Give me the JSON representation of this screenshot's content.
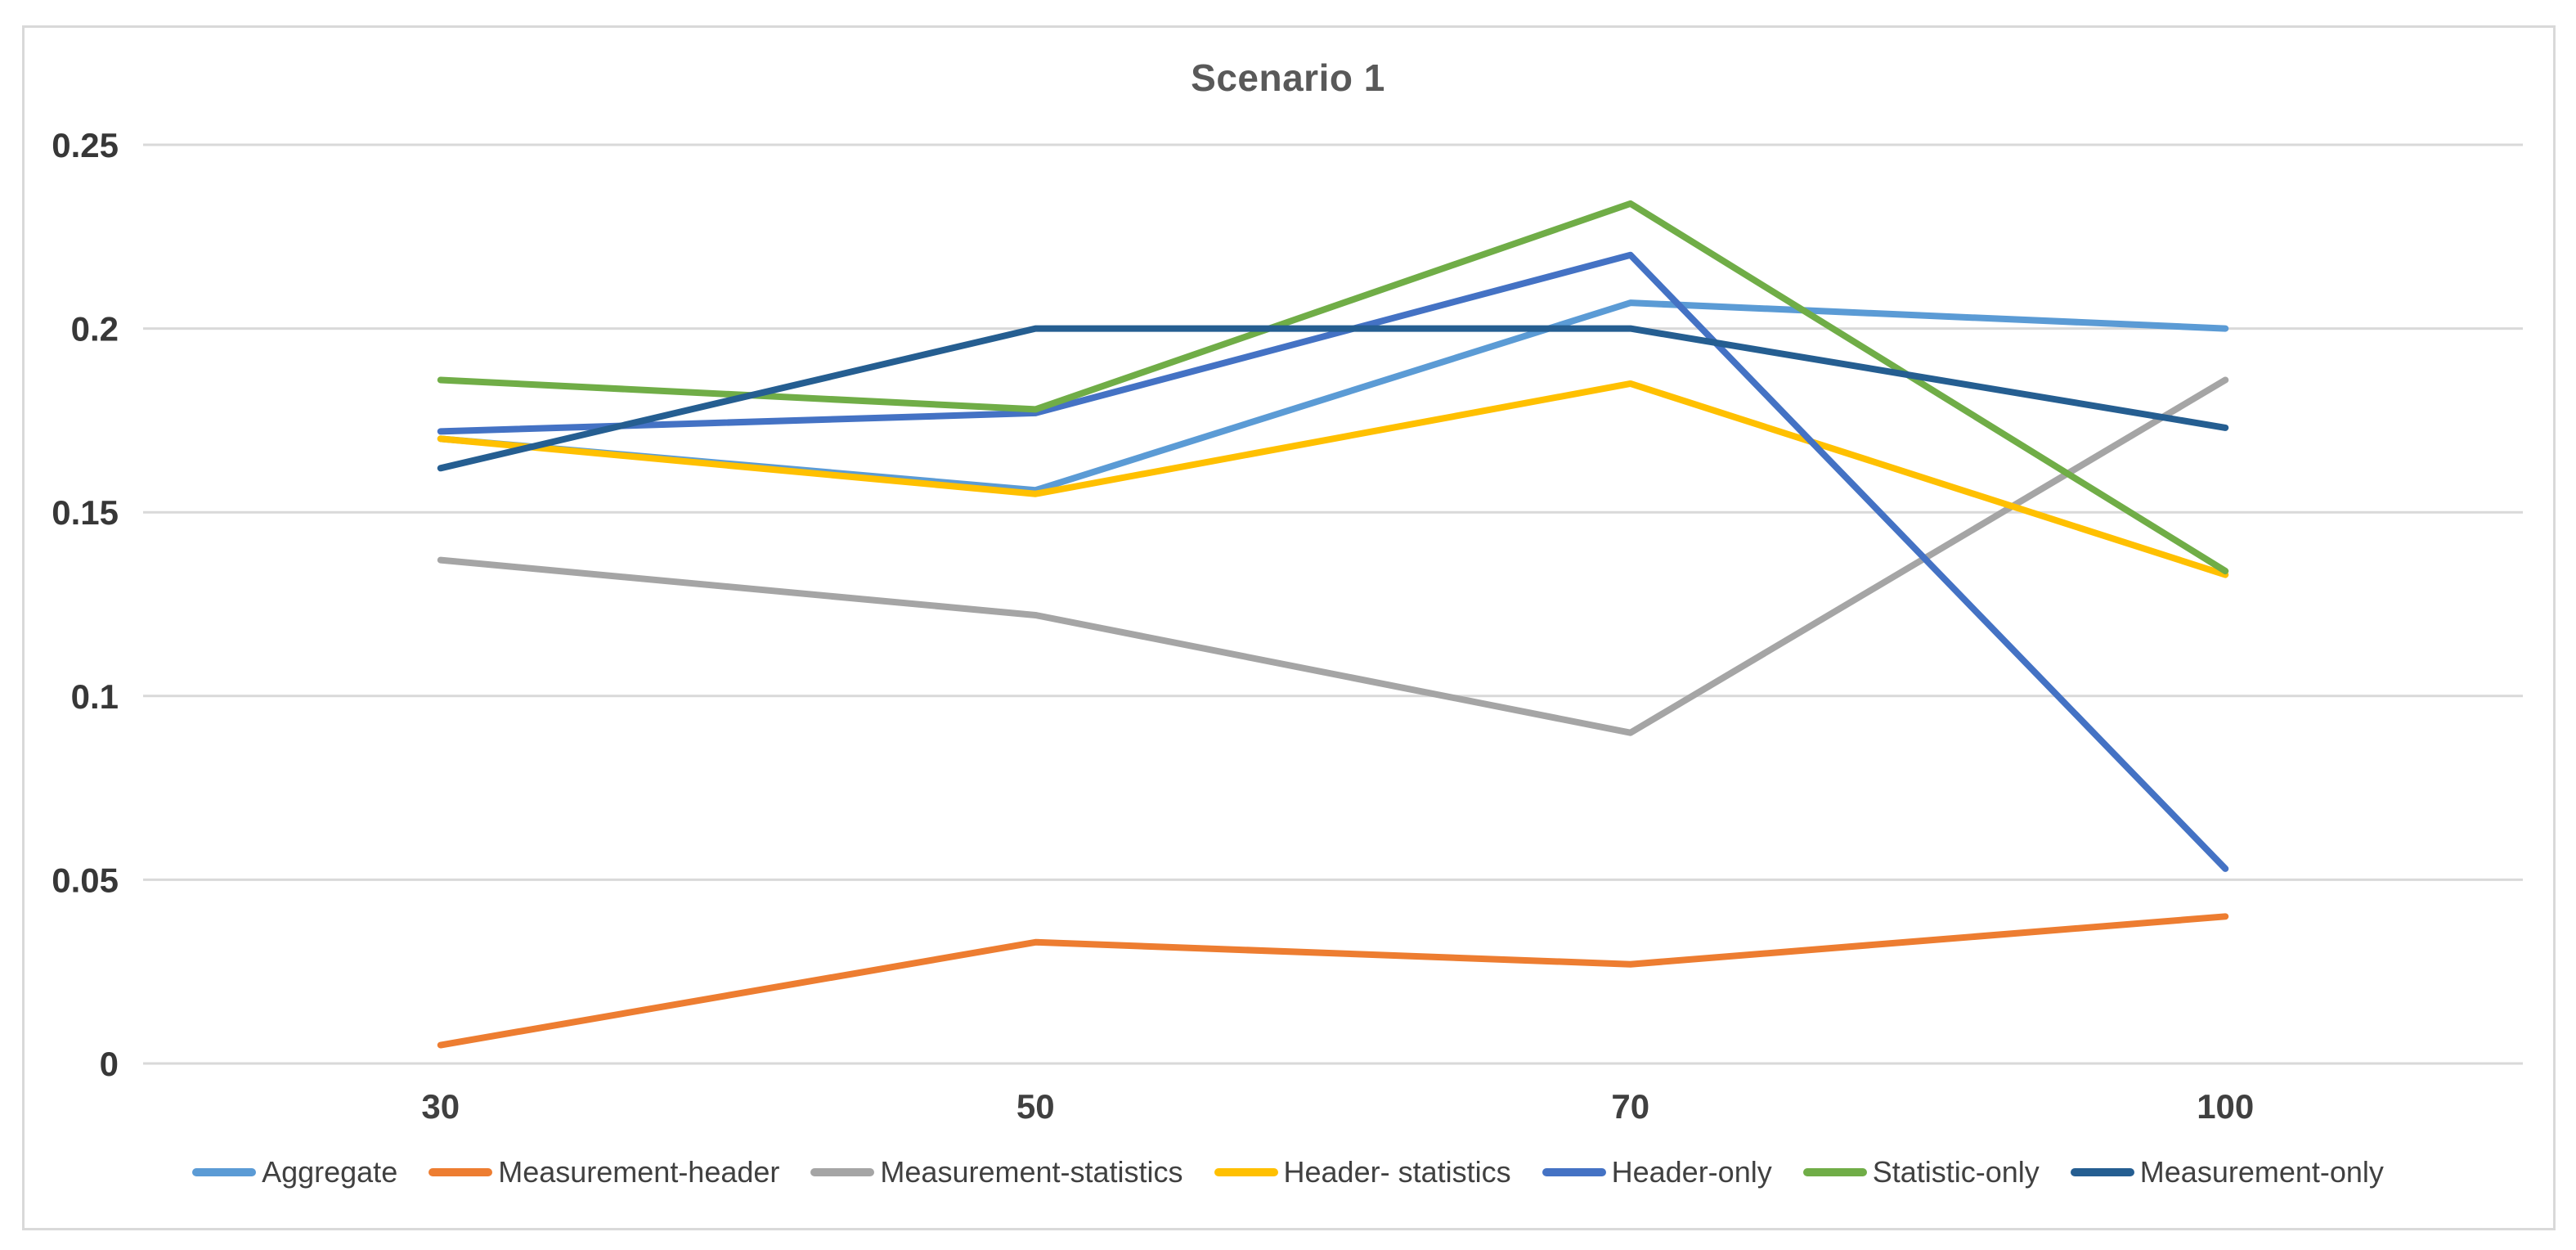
{
  "chart_data": {
    "type": "line",
    "title": "Scenario 1",
    "categories": [
      "30",
      "50",
      "70",
      "100"
    ],
    "y_ticks": [
      "0",
      "0.05",
      "0.1",
      "0.15",
      "0.2",
      "0.25"
    ],
    "ylim": [
      0,
      0.25
    ],
    "grid": "horizontal-only",
    "legend_position": "bottom",
    "series": [
      {
        "name": "Aggregate",
        "color": "#5B9BD5",
        "values": [
          0.17,
          0.156,
          0.207,
          0.2
        ]
      },
      {
        "name": "Measurement-header",
        "color": "#ED7D31",
        "values": [
          0.005,
          0.033,
          0.027,
          0.04
        ]
      },
      {
        "name": "Measurement-statistics",
        "color": "#A5A5A5",
        "values": [
          0.137,
          0.122,
          0.09,
          0.186
        ]
      },
      {
        "name": "Header- statistics",
        "color": "#FFC000",
        "values": [
          0.17,
          0.155,
          0.185,
          0.133
        ]
      },
      {
        "name": "Header-only",
        "color": "#4472C4",
        "values": [
          0.172,
          0.177,
          0.22,
          0.053
        ]
      },
      {
        "name": "Statistic-only",
        "color": "#70AD47",
        "values": [
          0.186,
          0.178,
          0.234,
          0.134
        ]
      },
      {
        "name": "Measurement-only",
        "color": "#255E91",
        "values": [
          0.162,
          0.2,
          0.2,
          0.173
        ]
      }
    ]
  },
  "styles": {
    "background": "#FFFFFF",
    "border_color": "#D9D9D9",
    "gridline_color": "#D9D9D9",
    "title_color": "#595959",
    "axis_label_color": "#3A3A3A",
    "legend_text_color": "#404040"
  }
}
